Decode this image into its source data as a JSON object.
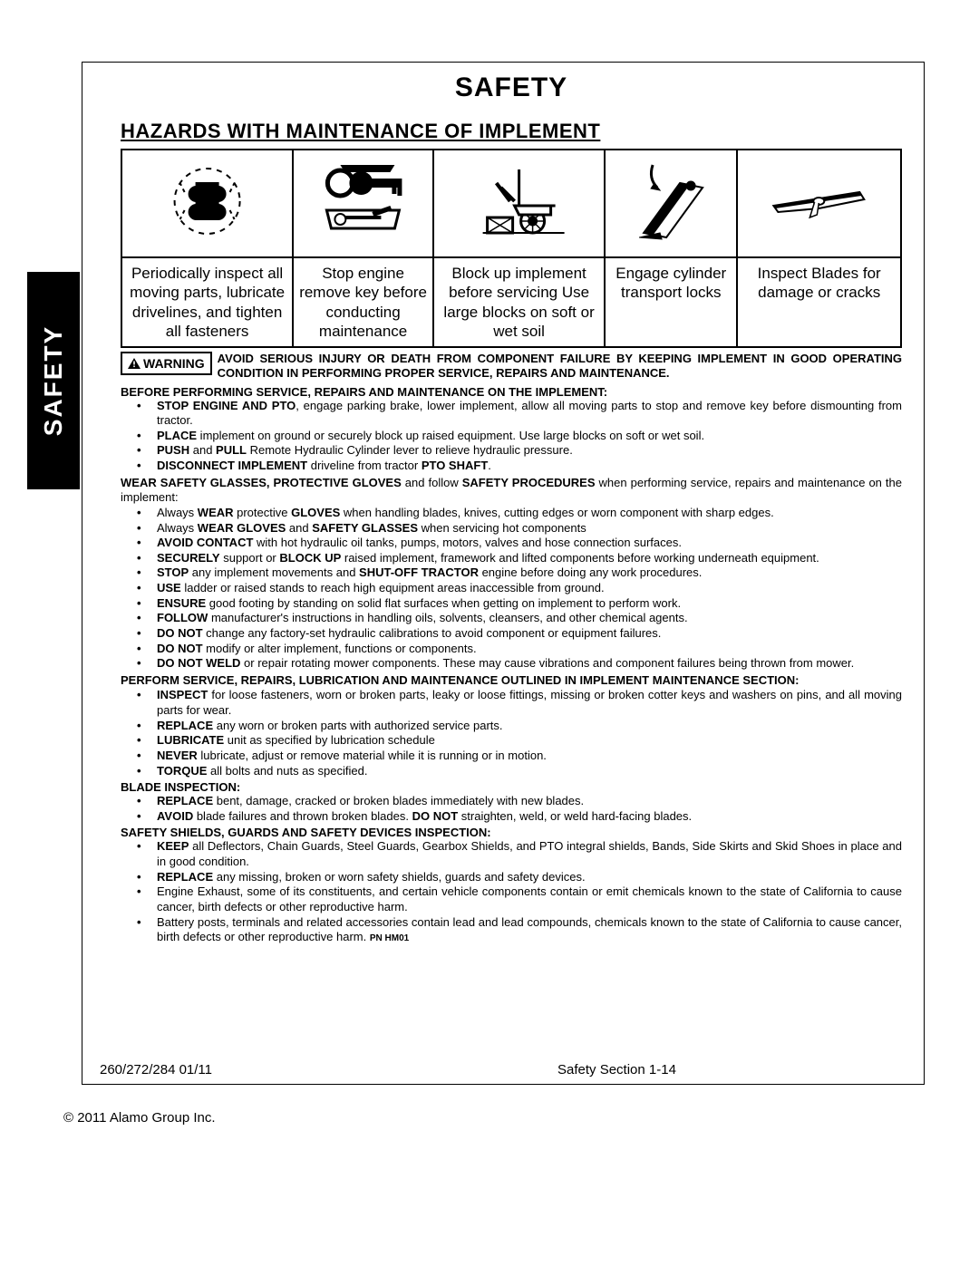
{
  "tab_label": "SAFETY",
  "page_title": "SAFETY",
  "section_title": "HAZARDS WITH MAINTENANCE OF IMPLEMENT",
  "hazards": [
    {
      "caption": "Periodically inspect all moving parts, lubricate drivelines, and tighten all fasteners"
    },
    {
      "caption": "Stop engine remove key before conducting maintenance"
    },
    {
      "caption": "Block up implement before servicing Use large blocks on soft or wet soil"
    },
    {
      "caption": "Engage cylinder transport locks"
    },
    {
      "caption": "Inspect Blades for damage or cracks"
    }
  ],
  "warning_label": "WARNING",
  "warning_text": "AVOID SERIOUS INJURY OR DEATH FROM COMPONENT FAILURE BY KEEPING IMPLEMENT IN GOOD OPERATING CONDITION IN PERFORMING PROPER SERVICE, REPAIRS AND MAINTENANCE.",
  "heading1": "BEFORE PERFORMING SERVICE, REPAIRS AND MAINTENANCE ON THE IMPLEMENT:",
  "list1": [
    "<b>STOP ENGINE AND PTO</b>, engage parking brake, lower implement, allow all moving parts to stop and remove key before dismounting from tractor.",
    "<b>PLACE</b> implement on ground or securely block up raised equipment. Use large blocks on soft or wet soil.",
    "<b>PUSH</b> and <b>PULL</b> Remote Hydraulic Cylinder lever to relieve hydraulic pressure.",
    "<b>DISCONNECT IMPLEMENT</b> driveline from tractor <b>PTO SHAFT</b>."
  ],
  "para2": "<b>WEAR SAFETY GLASSES, PROTECTIVE GLOVES</b> and follow <b>SAFETY PROCEDURES</b> when performing service, repairs and maintenance on the implement:",
  "list2": [
    "Always <b>WEAR</b> protective <b>GLOVES</b> when handling blades, knives, cutting edges or worn component with sharp edges.",
    "Always <b>WEAR GLOVES</b> and <b>SAFETY GLASSES</b> when servicing hot components",
    "<b>AVOID CONTACT</b> with hot hydraulic oil tanks, pumps, motors, valves and hose connection surfaces.",
    "<b>SECURELY</b> support or <b>BLOCK UP</b> raised implement, framework and lifted components before working underneath equipment.",
    "<b>STOP</b> any implement movements and <b>SHUT-OFF TRACTOR</b> engine before doing any work procedures.",
    "<b>USE</b> ladder or raised stands to reach high equipment areas inaccessible from ground.",
    "<b>ENSURE</b> good footing by standing on solid flat surfaces when getting on implement to perform work.",
    "<b>FOLLOW</b> manufacturer's instructions in handling oils, solvents, cleansers, and other chemical agents.",
    "<b>DO NOT</b> change any factory-set hydraulic calibrations to avoid component or equipment failures.",
    "<b>DO NOT</b> modify or alter implement, functions or components.",
    "<b>DO NOT WELD</b> or repair rotating mower components. These may cause vibrations and component failures being thrown from mower."
  ],
  "heading3": "PERFORM SERVICE, REPAIRS, LUBRICATION AND MAINTENANCE OUTLINED IN IMPLEMENT MAINTENANCE SECTION:",
  "list3": [
    "<b>INSPECT</b> for loose fasteners, worn or broken parts, leaky or loose fittings, missing or broken cotter keys and washers on pins, and all moving parts for wear.",
    "<b>REPLACE</b> any worn or broken parts with authorized service parts.",
    "<b>LUBRICATE</b> unit as specified by lubrication schedule",
    "<b>NEVER</b> lubricate, adjust or remove material while it is running or in motion.",
    "<b>TORQUE</b> all bolts and nuts as specified."
  ],
  "heading4": "BLADE INSPECTION:",
  "list4": [
    "<b>REPLACE</b> bent, damage, cracked or broken blades immediately with new blades.",
    "<b>AVOID</b> blade failures and thrown broken blades. <b>DO NOT</b> straighten, weld, or weld hard-facing blades."
  ],
  "heading5": "SAFETY SHIELDS, GUARDS AND SAFETY DEVICES INSPECTION:",
  "list5": [
    "<b>KEEP</b> all Deflectors, Chain Guards, Steel Guards, Gearbox Shields, and PTO integral shields, Bands, Side Skirts and Skid Shoes in place and in good condition.",
    "<b>REPLACE</b> any missing, broken or worn safety shields, guards and safety devices.",
    "Engine Exhaust, some of its constituents, and certain vehicle components contain or emit chemicals known to the state of California to cause cancer, birth defects or other reproductive harm.",
    "Battery posts, terminals and related accessories contain lead and lead compounds, chemicals known to the state of California to cause cancer, birth defects or other reproductive harm.  <span class='pn'>PN HM01</span>"
  ],
  "footer_left": "260/272/284   01/11",
  "footer_center": "Safety Section 1-14",
  "copyright": "© 2011 Alamo Group Inc."
}
